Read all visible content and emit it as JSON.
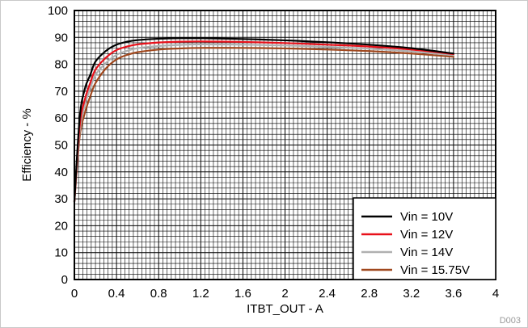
{
  "chart_data": {
    "type": "line",
    "xlabel": "ITBT_OUT - A",
    "ylabel": "Efficiency - %",
    "xlim": [
      0,
      4
    ],
    "ylim": [
      0,
      100
    ],
    "x_ticks": [
      "0",
      "0.4",
      "0.8",
      "1.2",
      "1.6",
      "2",
      "2.4",
      "2.8",
      "3.2",
      "3.6",
      "4"
    ],
    "y_ticks": [
      "0",
      "10",
      "20",
      "30",
      "40",
      "50",
      "60",
      "70",
      "80",
      "90",
      "100"
    ],
    "grid": true,
    "legend_position": "bottom-right",
    "figure_id": "D003",
    "series": [
      {
        "name": "Vin = 10V",
        "color": "#000000",
        "points": [
          [
            0,
            29
          ],
          [
            0.05,
            60
          ],
          [
            0.1,
            71
          ],
          [
            0.15,
            76
          ],
          [
            0.2,
            81
          ],
          [
            0.3,
            85
          ],
          [
            0.4,
            87.3
          ],
          [
            0.5,
            88.4
          ],
          [
            0.6,
            89
          ],
          [
            0.8,
            89.5
          ],
          [
            1.0,
            89.7
          ],
          [
            1.2,
            89.7
          ],
          [
            1.6,
            89.4
          ],
          [
            2.0,
            88.9
          ],
          [
            2.4,
            88.2
          ],
          [
            2.8,
            87.3
          ],
          [
            3.2,
            86
          ],
          [
            3.6,
            84
          ]
        ]
      },
      {
        "name": "Vin = 12V",
        "color": "#e8101a",
        "points": [
          [
            0,
            29
          ],
          [
            0.05,
            57
          ],
          [
            0.1,
            67
          ],
          [
            0.15,
            73
          ],
          [
            0.2,
            78
          ],
          [
            0.3,
            82.5
          ],
          [
            0.4,
            85.3
          ],
          [
            0.5,
            86.6
          ],
          [
            0.6,
            87.4
          ],
          [
            0.8,
            88.1
          ],
          [
            1.0,
            88.4
          ],
          [
            1.2,
            88.5
          ],
          [
            1.6,
            88.3
          ],
          [
            2.0,
            87.9
          ],
          [
            2.4,
            87.3
          ],
          [
            2.8,
            86.6
          ],
          [
            3.2,
            85.5
          ],
          [
            3.6,
            83.8
          ]
        ]
      },
      {
        "name": "Vin = 14V",
        "color": "#b0b0b0",
        "points": [
          [
            0,
            29
          ],
          [
            0.05,
            55
          ],
          [
            0.1,
            65
          ],
          [
            0.15,
            71
          ],
          [
            0.2,
            76
          ],
          [
            0.3,
            80.5
          ],
          [
            0.4,
            83.5
          ],
          [
            0.5,
            85
          ],
          [
            0.6,
            86
          ],
          [
            0.8,
            86.8
          ],
          [
            1.0,
            87.2
          ],
          [
            1.2,
            87.4
          ],
          [
            1.6,
            87.3
          ],
          [
            2.0,
            87
          ],
          [
            2.4,
            86.5
          ],
          [
            2.8,
            85.8
          ],
          [
            3.2,
            84.8
          ],
          [
            3.6,
            83.4
          ]
        ]
      },
      {
        "name": "Vin = 15.75V",
        "color": "#a0481e",
        "points": [
          [
            0,
            29
          ],
          [
            0.05,
            53
          ],
          [
            0.1,
            62
          ],
          [
            0.15,
            68
          ],
          [
            0.2,
            73
          ],
          [
            0.3,
            78.5
          ],
          [
            0.4,
            81.8
          ],
          [
            0.5,
            83.5
          ],
          [
            0.6,
            84.5
          ],
          [
            0.8,
            85.5
          ],
          [
            1.0,
            85.9
          ],
          [
            1.2,
            86.1
          ],
          [
            1.6,
            86.1
          ],
          [
            2.0,
            85.9
          ],
          [
            2.4,
            85.5
          ],
          [
            2.8,
            84.9
          ],
          [
            3.2,
            84
          ],
          [
            3.6,
            82.8
          ]
        ]
      }
    ]
  }
}
